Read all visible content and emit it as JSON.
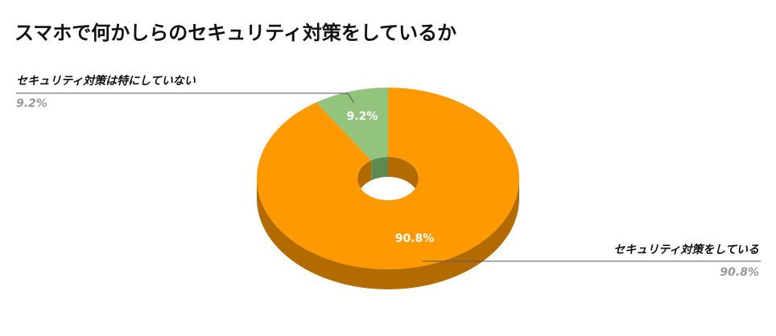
{
  "chart_data": {
    "type": "donut",
    "title": "スマホで何かしらのセキュリティ対策をしているか",
    "categories": [
      "セキュリティ対策をしている",
      "セキュリティ対策は特にしていない"
    ],
    "values": [
      90.8,
      9.2
    ],
    "value_labels": [
      "90.8%",
      "9.2%"
    ],
    "colors": [
      "#ff9900",
      "#93c47d"
    ],
    "side_colors": [
      "#b36b00",
      "#5e8a4f"
    ]
  }
}
